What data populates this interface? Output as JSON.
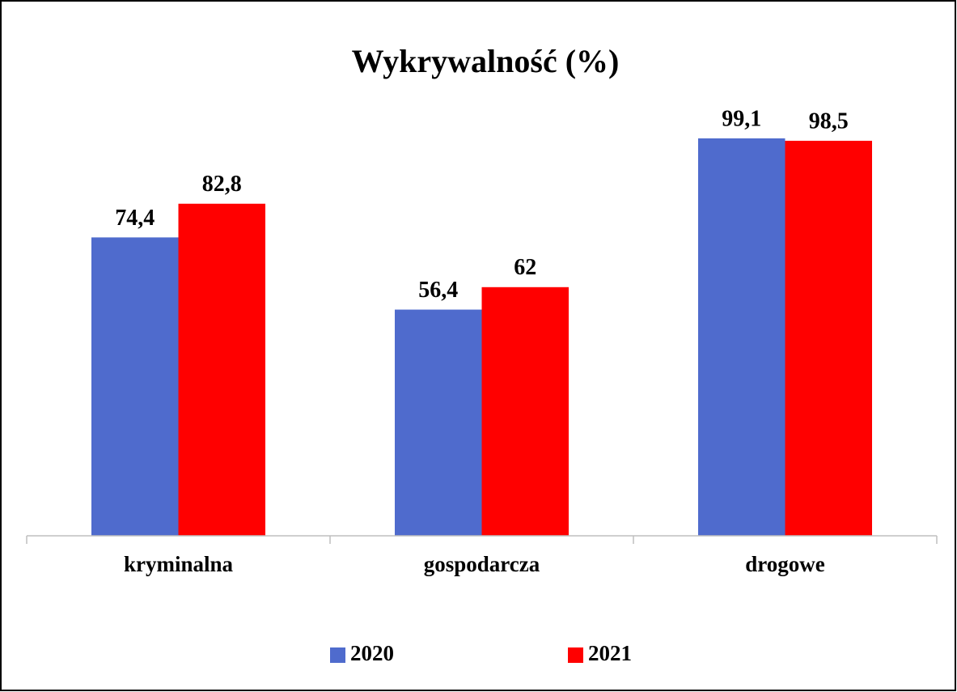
{
  "chart_data": {
    "type": "bar",
    "title": "Wykrywalność (%)",
    "categories": [
      "kryminalna",
      "gospodarcza",
      "drogowe"
    ],
    "series": [
      {
        "name": "2020",
        "color": "#4f6bcd",
        "values": [
          74.4,
          56.4,
          99.1
        ],
        "value_labels": [
          "74,4",
          "56,4",
          "99,1"
        ]
      },
      {
        "name": "2021",
        "color": "#ff0000",
        "values": [
          82.8,
          62,
          98.5
        ],
        "value_labels": [
          "82,8",
          "62",
          "98,5"
        ]
      }
    ],
    "ylim": [
      0,
      100
    ],
    "legend": "bottom"
  }
}
